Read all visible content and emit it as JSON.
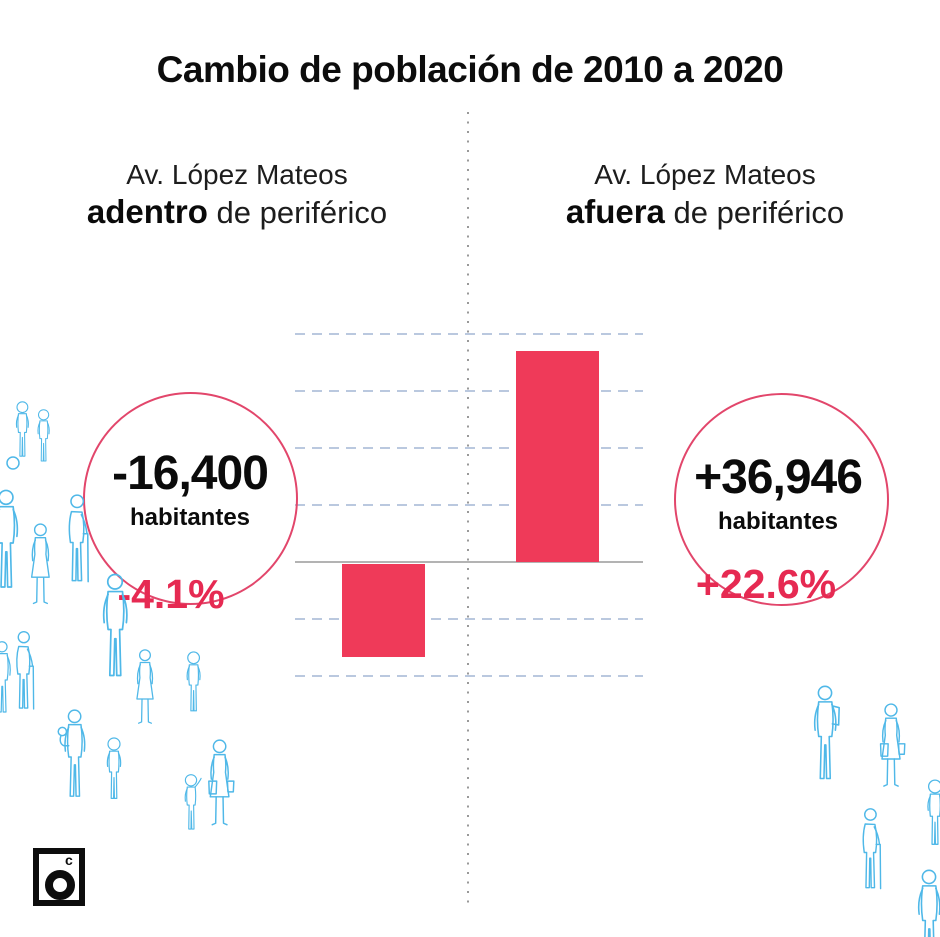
{
  "title": "Cambio de población de 2010 a 2020",
  "left_panel": {
    "location_line1": "Av. López Mateos",
    "location_emphasis": "adentro",
    "location_rest": "de periférico",
    "value": "-16,400",
    "unit": "habitantes",
    "percent": "-4.1%"
  },
  "right_panel": {
    "location_line1": "Av. López Mateos",
    "location_emphasis": "afuera",
    "location_rest": "de periférico",
    "value": "+36,946",
    "unit": "habitantes",
    "percent": "+22.6%"
  },
  "chart_data": {
    "type": "bar",
    "title": "Cambio de población de 2010 a 2020",
    "categories": [
      "Av. López Mateos adentro de periférico",
      "Av. López Mateos afuera de periférico"
    ],
    "values": [
      -16400,
      36946
    ],
    "value_labels": [
      "-16,400 habitantes",
      "+36,946 habitantes"
    ],
    "percent_labels": [
      "-4.1%",
      "+22.6%"
    ],
    "ylabel": "habitantes",
    "ylim": [
      -20000,
      40000
    ],
    "gridline_step": 10000,
    "grid": true,
    "legend": false,
    "bar_color": "#EF3A59"
  },
  "logo": {
    "superscript": "c"
  },
  "icons": {
    "people-illustration": "light-blue line-art pedestrians",
    "logo-mark": "bold ring (letter o) with superscript c inside black square"
  },
  "colors": {
    "bar": "#EF3A59",
    "percent_text": "#E62A52",
    "circle_stroke": "#E2466B",
    "people": "#4FB8E8",
    "grid": "#AEBFD9",
    "axis": "#B3B3B3",
    "dots": "#999999"
  }
}
